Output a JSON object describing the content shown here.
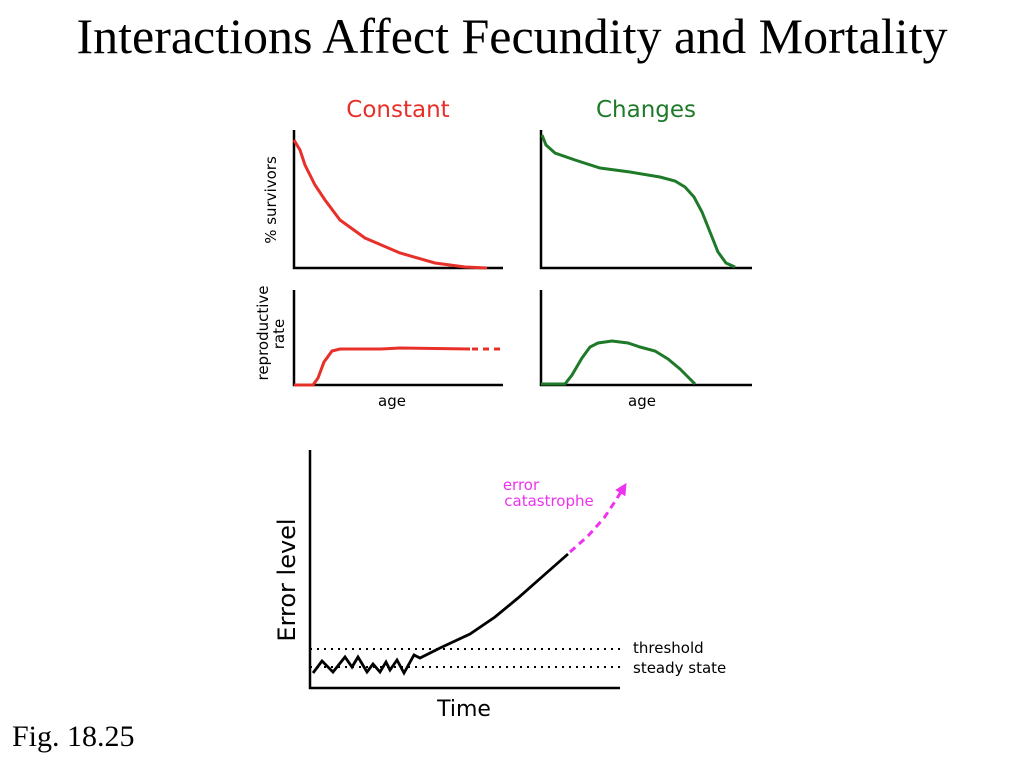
{
  "slide": {
    "title": "Interactions Affect Fecundity and Mortality",
    "caption": "Fig. 18.25"
  },
  "top_panels": {
    "constant_label": "Constant",
    "changes_label": "Changes",
    "survivors_axis_label": "% survivors",
    "reproductive_axis_label_line1": "reproductive",
    "reproductive_axis_label_line2": "rate",
    "age_label_left": "age",
    "age_label_right": "age"
  },
  "error_panel": {
    "y_axis_label": "Error level",
    "x_axis_label": "Time",
    "threshold_label": "threshold",
    "steady_state_label": "steady state",
    "catastrophe_label_line1": "error",
    "catastrophe_label_line2": "catastrophe"
  },
  "colors": {
    "constant": "#e8302a",
    "changes": "#1e7a28",
    "catastrophe": "#ee33ee",
    "ink": "#000000"
  }
}
